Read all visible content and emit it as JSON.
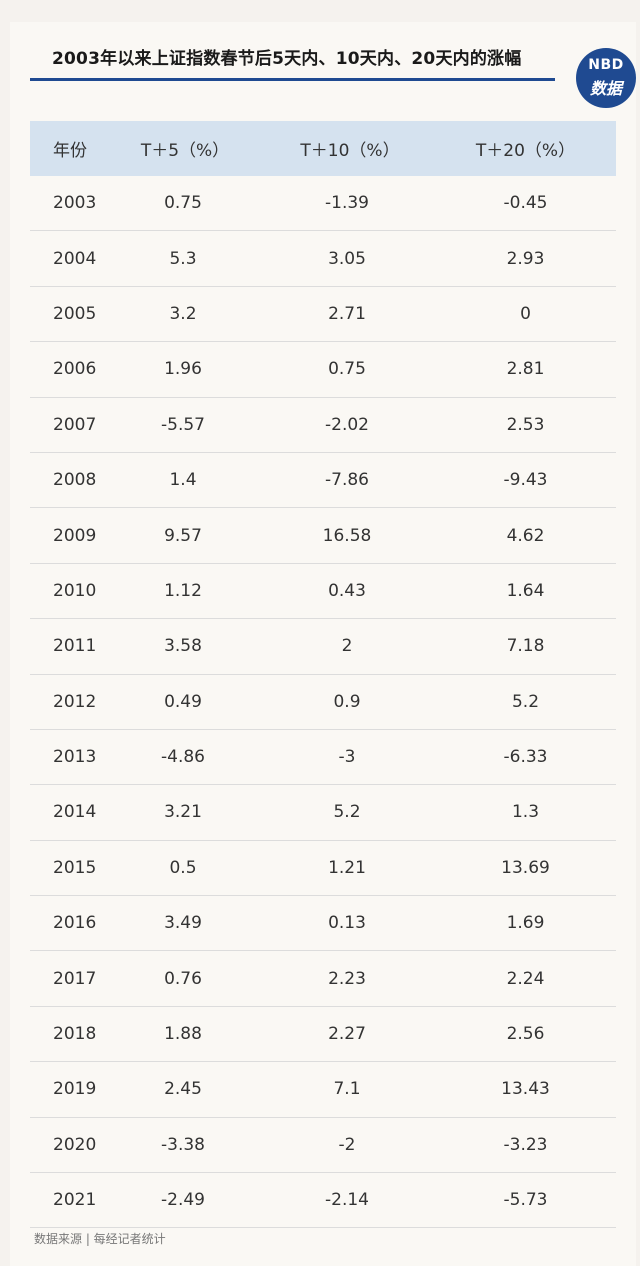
{
  "logo": {
    "line1": "NBD",
    "line2": "数据"
  },
  "source": "数据来源 | 每经记者统计",
  "colors": {
    "accent": "#1f4a91",
    "header_bg": "#d5e2ef",
    "background": "#faf8f4"
  },
  "chart_data": {
    "type": "table",
    "title": "2003年以来上证指数春节后5天内、10天内、20天内的涨幅",
    "columns": [
      "年份",
      "T＋5（%）",
      "T＋10（%）",
      "T＋20（%）"
    ],
    "rows": [
      [
        "2003",
        "0.75",
        "-1.39",
        "-0.45"
      ],
      [
        "2004",
        "5.3",
        "3.05",
        "2.93"
      ],
      [
        "2005",
        "3.2",
        "2.71",
        "0"
      ],
      [
        "2006",
        "1.96",
        "0.75",
        "2.81"
      ],
      [
        "2007",
        "-5.57",
        "-2.02",
        "2.53"
      ],
      [
        "2008",
        "1.4",
        "-7.86",
        "-9.43"
      ],
      [
        "2009",
        "9.57",
        "16.58",
        "4.62"
      ],
      [
        "2010",
        "1.12",
        "0.43",
        "1.64"
      ],
      [
        "2011",
        "3.58",
        "2",
        "7.18"
      ],
      [
        "2012",
        "0.49",
        "0.9",
        "5.2"
      ],
      [
        "2013",
        "-4.86",
        "-3",
        "-6.33"
      ],
      [
        "2014",
        "3.21",
        "5.2",
        "1.3"
      ],
      [
        "2015",
        "0.5",
        "1.21",
        "13.69"
      ],
      [
        "2016",
        "3.49",
        "0.13",
        "1.69"
      ],
      [
        "2017",
        "0.76",
        "2.23",
        "2.24"
      ],
      [
        "2018",
        "1.88",
        "2.27",
        "2.56"
      ],
      [
        "2019",
        "2.45",
        "7.1",
        "13.43"
      ],
      [
        "2020",
        "-3.38",
        "-2",
        "-3.23"
      ],
      [
        "2021",
        "-2.49",
        "-2.14",
        "-5.73"
      ]
    ]
  }
}
